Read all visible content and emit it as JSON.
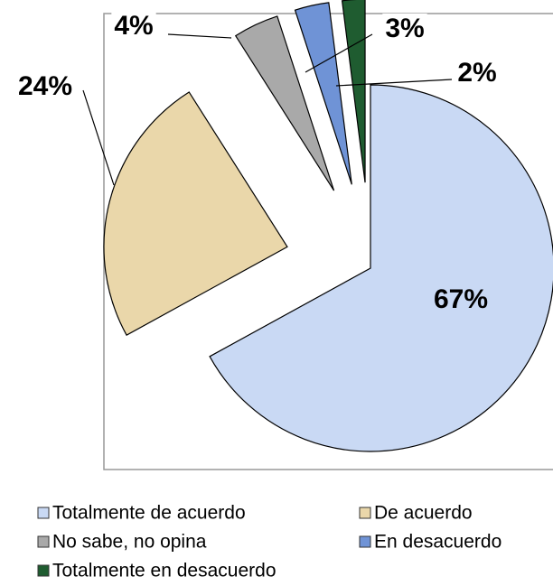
{
  "chart_data": {
    "type": "pie",
    "categories": [
      "Totalmente de acuerdo",
      "De acuerdo",
      "No sabe, no opina",
      "En desacuerdo",
      "Totalmente en desacuerdo"
    ],
    "values": [
      67,
      24,
      4,
      3,
      2
    ],
    "value_labels": [
      "67%",
      "24%",
      "4%",
      "3%",
      "2%"
    ],
    "colors": [
      "#c9d9f4",
      "#ead7aa",
      "#a9a9a9",
      "#6f93d6",
      "#1f5c30"
    ]
  }
}
